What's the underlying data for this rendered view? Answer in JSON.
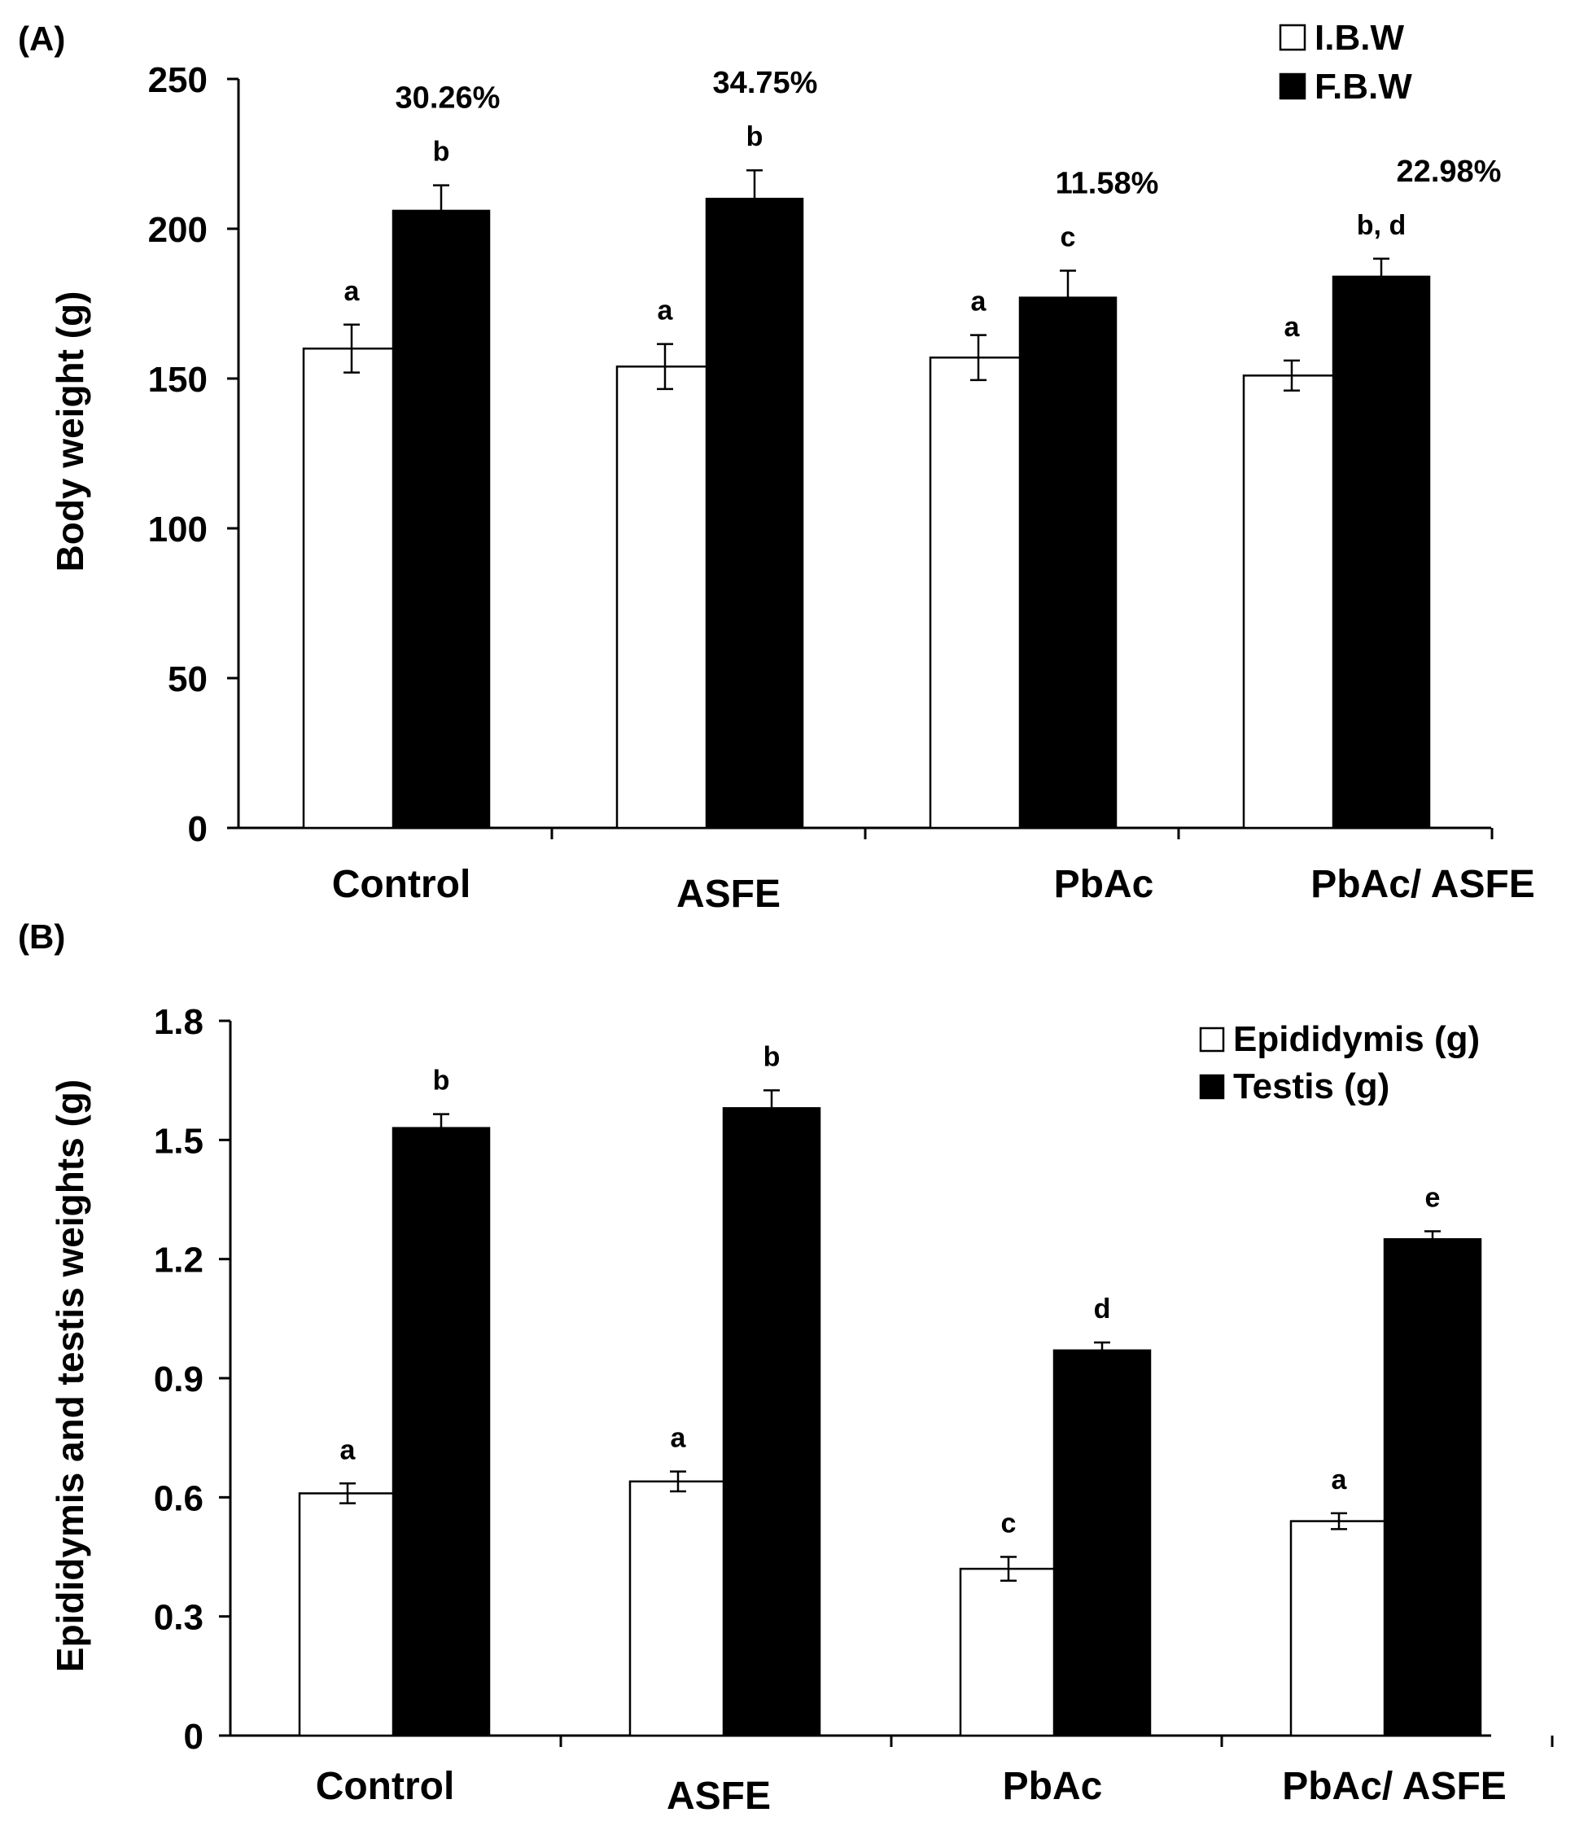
{
  "chart_data": [
    {
      "panel": "(A)",
      "type": "bar",
      "ylabel": "Body weight (g)",
      "xlabel": "",
      "ylim": [
        0,
        250
      ],
      "yticks": [
        0,
        50,
        100,
        150,
        200,
        250
      ],
      "categories": [
        "Control",
        "ASFE",
        "PbAc",
        "PbAc/ ASFE"
      ],
      "legend_position": "top-right",
      "series": [
        {
          "name": "I.B.W",
          "fill": "#ffffff",
          "values": [
            160,
            154,
            157,
            151
          ],
          "errors": [
            8,
            7.5,
            7.5,
            5
          ],
          "letters": [
            "a",
            "a",
            "a",
            "a"
          ]
        },
        {
          "name": "F.B.W",
          "fill": "#000000",
          "values": [
            206,
            210,
            177,
            184
          ],
          "errors": [
            8.5,
            9.5,
            9,
            6
          ],
          "letters": [
            "b",
            "b",
            "c",
            "b, d"
          ]
        }
      ],
      "annotations": [
        "30.26%",
        "34.75%",
        "11.58%",
        "22.98%"
      ]
    },
    {
      "panel": "(B)",
      "type": "bar",
      "ylabel": "Epididymis and testis weights (g)",
      "xlabel": "",
      "ylim": [
        0,
        1.8
      ],
      "yticks": [
        "0",
        "0.3",
        "0.6",
        "0.9",
        "1.2",
        "1.5",
        "1.8"
      ],
      "categories": [
        "Control",
        "ASFE",
        "PbAc",
        "PbAc/ ASFE"
      ],
      "legend_position": "top-right",
      "series": [
        {
          "name": "Epididymis (g)",
          "fill": "#ffffff",
          "values": [
            0.61,
            0.64,
            0.42,
            0.54
          ],
          "errors": [
            0.025,
            0.025,
            0.03,
            0.02
          ],
          "letters": [
            "a",
            "a",
            "c",
            "a"
          ]
        },
        {
          "name": "Testis (g)",
          "fill": "#000000",
          "values": [
            1.53,
            1.58,
            0.97,
            1.25
          ],
          "errors": [
            0.035,
            0.045,
            0.02,
            0.02
          ],
          "letters": [
            "b",
            "b",
            "d",
            "e"
          ]
        }
      ],
      "annotations": []
    }
  ]
}
